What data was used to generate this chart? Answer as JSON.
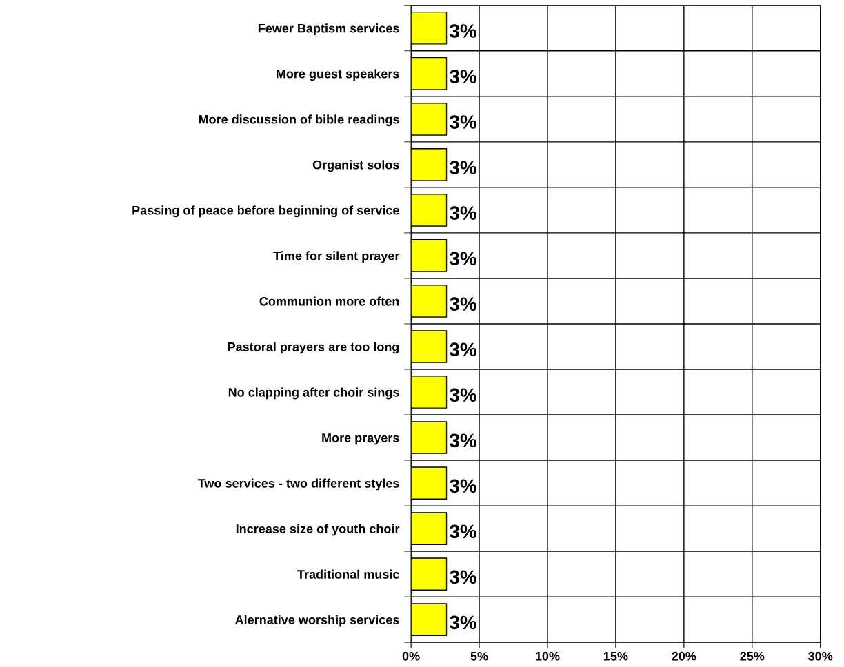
{
  "chart_data": {
    "type": "bar",
    "orientation": "horizontal",
    "categories": [
      "Fewer Baptism services",
      "More guest speakers",
      "More discussion of bible readings",
      "Organist solos",
      "Passing of peace before beginning of service",
      "Time for silent prayer",
      "Communion more often",
      "Pastoral prayers are too long",
      "No clapping after choir sings",
      "More prayers",
      "Two services - two different styles",
      "Increase size of youth choir",
      "Traditional music",
      "Alernative worship services"
    ],
    "values": [
      2.6,
      2.6,
      2.6,
      2.6,
      2.6,
      2.6,
      2.6,
      2.6,
      2.6,
      2.6,
      2.6,
      2.6,
      2.6,
      2.6
    ],
    "value_labels": [
      "3%",
      "3%",
      "3%",
      "3%",
      "3%",
      "3%",
      "3%",
      "3%",
      "3%",
      "3%",
      "3%",
      "3%",
      "3%",
      "3%"
    ],
    "color": "#ffff00",
    "xlim": [
      0,
      30
    ],
    "xticks": [
      {
        "value": 0,
        "label": "0%"
      },
      {
        "value": 5,
        "label": "5%"
      },
      {
        "value": 10,
        "label": "10%"
      },
      {
        "value": 15,
        "label": "15%"
      },
      {
        "value": 20,
        "label": "20%"
      },
      {
        "value": 25,
        "label": "25%"
      },
      {
        "value": 30,
        "label": "30%"
      }
    ],
    "grid": true
  }
}
